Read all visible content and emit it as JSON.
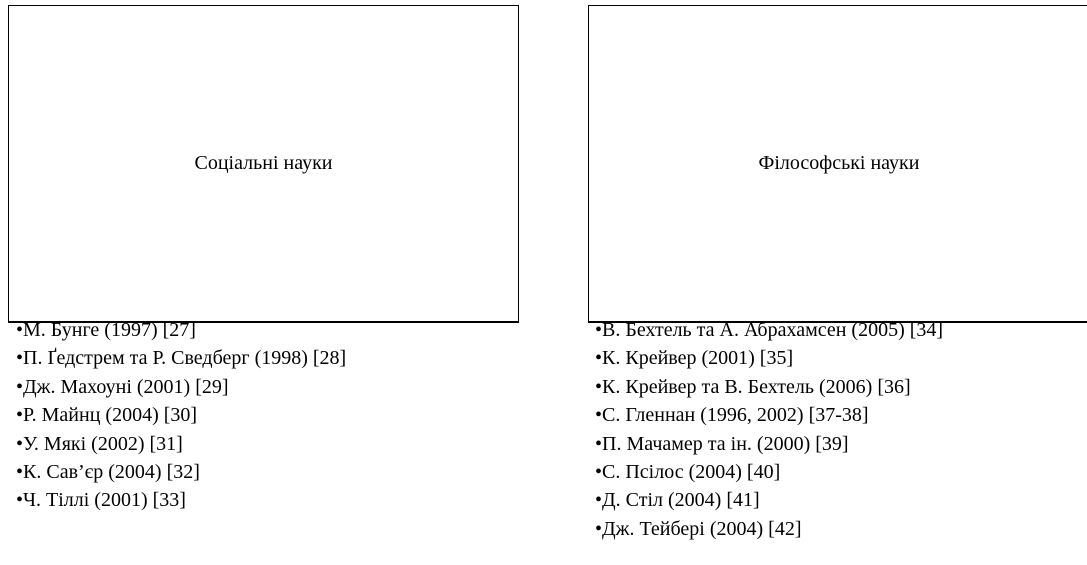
{
  "panels": [
    {
      "title": "Соціальні науки",
      "items": [
        "М. Бунге (1997) [27]",
        "П. Ґедстрем та Р. Сведберг (1998) [28]",
        "Дж. Махоуні (2001) [29]",
        "Р. Майнц (2004) [30]",
        "У. Мякі (2002) [31]",
        "К. Сав’єр (2004) [32]",
        "Ч. Тіллі (2001) [33]"
      ]
    },
    {
      "title": "Філософські науки",
      "items": [
        "В. Бехтель та А. Абрахамсен (2005) [34]",
        "К. Крейвер (2001) [35]",
        "К. Крейвер та В. Бехтель (2006) [36]",
        "С. Гленнан (1996, 2002) [37-38]",
        "П. Мачамер та ін. (2000) [39]",
        "С. Псілос (2004) [40]",
        "Д. Стіл (2004) [41]",
        "Дж. Тейбері (2004) [42]"
      ]
    }
  ]
}
